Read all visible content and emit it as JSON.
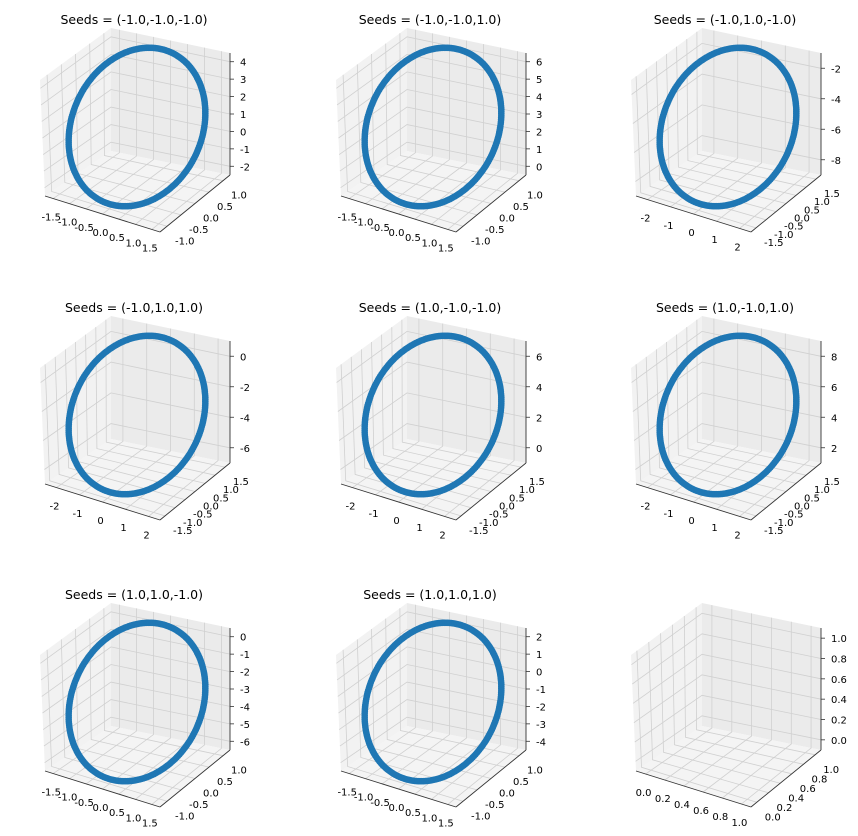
{
  "figure": {
    "background": "#ffffff",
    "series_color": "#1f77b4",
    "pane_color": "#f2f2f2",
    "grid_color": "#d0d0d0"
  },
  "chart_data": [
    {
      "type": "scatter",
      "title": "Seeds = (-1.0,-1.0,-1.0)",
      "xticks": [
        "-1.5",
        "-1.0",
        "-0.5",
        "0.0",
        "0.5",
        "1.0",
        "1.5"
      ],
      "yticks": [
        "-1.0",
        "-0.5",
        "0.0",
        "0.5",
        "1.0"
      ],
      "zticks": [
        "-2",
        "-1",
        "0",
        "1",
        "2",
        "3",
        "4"
      ],
      "xlim": [
        -1.5,
        1.5
      ],
      "ylim": [
        -1.0,
        1.0
      ],
      "zlim": [
        -2,
        4
      ],
      "shape": "ellipse"
    },
    {
      "type": "scatter",
      "title": "Seeds = (-1.0,-1.0,1.0)",
      "xticks": [
        "-1.5",
        "-1.0",
        "-0.5",
        "0.0",
        "0.5",
        "1.0",
        "1.5"
      ],
      "yticks": [
        "-1.0",
        "-0.5",
        "0.0",
        "0.5",
        "1.0"
      ],
      "zticks": [
        "0",
        "1",
        "2",
        "3",
        "4",
        "5",
        "6"
      ],
      "xlim": [
        -1.5,
        1.5
      ],
      "ylim": [
        -1.0,
        1.0
      ],
      "zlim": [
        0,
        6
      ],
      "shape": "ellipse"
    },
    {
      "type": "scatter",
      "title": "Seeds = (-1.0,1.0,-1.0)",
      "xticks": [
        "-2",
        "-1",
        "0",
        "1",
        "2"
      ],
      "yticks": [
        "-1.5",
        "-1.0",
        "-0.5",
        "0.0",
        "0.5",
        "1.0",
        "1.5"
      ],
      "zticks": [
        "-8",
        "-6",
        "-4",
        "-2"
      ],
      "xlim": [
        -2,
        2
      ],
      "ylim": [
        -1.5,
        1.5
      ],
      "zlim": [
        -9,
        -1
      ],
      "shape": "ellipse"
    },
    {
      "type": "scatter",
      "title": "Seeds = (-1.0,1.0,1.0)",
      "xticks": [
        "-2",
        "-1",
        "0",
        "1",
        "2"
      ],
      "yticks": [
        "-1.5",
        "-1.0",
        "-0.5",
        "0.0",
        "0.5",
        "1.0",
        "1.5"
      ],
      "zticks": [
        "-6",
        "-4",
        "-2",
        "0"
      ],
      "xlim": [
        -2,
        2
      ],
      "ylim": [
        -1.5,
        1.5
      ],
      "zlim": [
        -7,
        1
      ],
      "shape": "ellipse"
    },
    {
      "type": "scatter",
      "title": "Seeds = (1.0,-1.0,-1.0)",
      "xticks": [
        "-2",
        "-1",
        "0",
        "1",
        "2"
      ],
      "yticks": [
        "-1.5",
        "-1.0",
        "-0.5",
        "0.0",
        "0.5",
        "1.0",
        "1.5"
      ],
      "zticks": [
        "0",
        "2",
        "4",
        "6"
      ],
      "xlim": [
        -2,
        2
      ],
      "ylim": [
        -1.5,
        1.5
      ],
      "zlim": [
        -1,
        7
      ],
      "shape": "ellipse"
    },
    {
      "type": "scatter",
      "title": "Seeds = (1.0,-1.0,1.0)",
      "xticks": [
        "-2",
        "-1",
        "0",
        "1",
        "2"
      ],
      "yticks": [
        "-1.5",
        "-1.0",
        "-0.5",
        "0.0",
        "0.5",
        "1.0",
        "1.5"
      ],
      "zticks": [
        "2",
        "4",
        "6",
        "8"
      ],
      "xlim": [
        -2,
        2
      ],
      "ylim": [
        -1.5,
        1.5
      ],
      "zlim": [
        1,
        9
      ],
      "shape": "ellipse"
    },
    {
      "type": "scatter",
      "title": "Seeds = (1.0,1.0,-1.0)",
      "xticks": [
        "-1.5",
        "-1.0",
        "-0.5",
        "0.0",
        "0.5",
        "1.0",
        "1.5"
      ],
      "yticks": [
        "-1.0",
        "-0.5",
        "0.0",
        "0.5",
        "1.0"
      ],
      "zticks": [
        "-6",
        "-5",
        "-4",
        "-3",
        "-2",
        "-1",
        "0"
      ],
      "xlim": [
        -1.5,
        1.5
      ],
      "ylim": [
        -1.0,
        1.0
      ],
      "zlim": [
        -6,
        0
      ],
      "shape": "ellipse"
    },
    {
      "type": "scatter",
      "title": "Seeds = (1.0,1.0,1.0)",
      "xticks": [
        "-1.5",
        "-1.0",
        "-0.5",
        "0.0",
        "0.5",
        "1.0",
        "1.5"
      ],
      "yticks": [
        "-1.0",
        "-0.5",
        "0.0",
        "0.5",
        "1.0"
      ],
      "zticks": [
        "-4",
        "-3",
        "-2",
        "-1",
        "0",
        "1",
        "2"
      ],
      "xlim": [
        -1.5,
        1.5
      ],
      "ylim": [
        -1.0,
        1.0
      ],
      "zlim": [
        -4,
        2
      ],
      "shape": "ellipse"
    },
    {
      "type": "scatter",
      "title": "",
      "xticks": [
        "0.0",
        "0.2",
        "0.4",
        "0.6",
        "0.8",
        "1.0"
      ],
      "yticks": [
        "0.0",
        "0.2",
        "0.4",
        "0.6",
        "0.8",
        "1.0"
      ],
      "zticks": [
        "0.0",
        "0.2",
        "0.4",
        "0.6",
        "0.8",
        "1.0"
      ],
      "xlim": [
        0,
        1
      ],
      "ylim": [
        0,
        1
      ],
      "zlim": [
        0,
        1
      ],
      "shape": "none"
    }
  ]
}
